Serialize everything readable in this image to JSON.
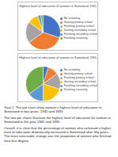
{
  "chart_data": [
    {
      "type": "pie",
      "title": "Highest level of education of women in Someland 1945",
      "categories": [
        "No schooling",
        "Starting primary school",
        "Finishing primary school",
        "Starting secondary school",
        "Finishing secondary school",
        "Finishing university"
      ],
      "values": [
        30,
        35,
        20,
        10,
        3,
        2
      ],
      "colors": [
        "#4472c4",
        "#ed7d31",
        "#a5a5a5",
        "#ffc000",
        "#5b9bd5",
        "#70ad47"
      ],
      "legend": "right"
    },
    {
      "type": "pie",
      "title": "Highest level of education of women in Someland 1995",
      "categories": [
        "No schooling",
        "Starting primary school",
        "Finishing primary school",
        "Starting secondary school",
        "Finishing secondary school",
        "Finishing university"
      ],
      "values": [
        5,
        10,
        15,
        20,
        15,
        35
      ],
      "colors": [
        "#4472c4",
        "#ed7d31",
        "#a5a5a5",
        "#ffc000",
        "#5b9bd5",
        "#70ad47"
      ],
      "legend": "right"
    }
  ],
  "task": {
    "heading": "Task 1: The pie chart show woman's highest level of education in Someland in two years: 1945 and 1995",
    "paragraphs": [
      "The two pie charts illustrate the highest level of education for women in Someland in the year 1945 and 1995.",
      "Overall, it is clear that the percentage of women who achieved a higher level of education dramatically increased in Someland after fifty years. The most noticeable change was the proportion of women who finished their first degree."
    ]
  }
}
